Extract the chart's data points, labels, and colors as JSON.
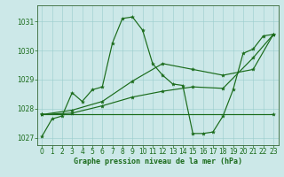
{
  "title": "Graphe pression niveau de la mer (hPa)",
  "bg_color": "#cce8e8",
  "grid_color": "#99cccc",
  "line_color": "#1a6b1a",
  "spine_color": "#336633",
  "xlim": [
    -0.5,
    23.5
  ],
  "ylim": [
    1026.75,
    1031.55
  ],
  "yticks": [
    1027,
    1028,
    1029,
    1030,
    1031
  ],
  "xticks": [
    0,
    1,
    2,
    3,
    4,
    5,
    6,
    7,
    8,
    9,
    10,
    11,
    12,
    13,
    14,
    15,
    16,
    17,
    18,
    19,
    20,
    21,
    22,
    23
  ],
  "series": [
    {
      "x": [
        0,
        1,
        2,
        3,
        4,
        5,
        6,
        7,
        8,
        9,
        10,
        11,
        12,
        13,
        14,
        15,
        16,
        17,
        18,
        19,
        20,
        21,
        22,
        23
      ],
      "y": [
        1027.05,
        1027.65,
        1027.75,
        1028.55,
        1028.25,
        1028.65,
        1028.75,
        1030.25,
        1031.1,
        1031.15,
        1030.7,
        1029.55,
        1029.15,
        1028.85,
        1028.8,
        1027.15,
        1027.15,
        1027.2,
        1027.75,
        1028.65,
        1029.9,
        1030.05,
        1030.5,
        1030.55
      ]
    },
    {
      "x": [
        0,
        23
      ],
      "y": [
        1027.8,
        1027.8
      ]
    },
    {
      "x": [
        0,
        3,
        6,
        9,
        12,
        15,
        18,
        21,
        23
      ],
      "y": [
        1027.8,
        1027.85,
        1028.1,
        1028.4,
        1028.6,
        1028.75,
        1028.7,
        1029.75,
        1030.55
      ]
    },
    {
      "x": [
        0,
        3,
        6,
        9,
        12,
        15,
        18,
        21,
        23
      ],
      "y": [
        1027.8,
        1027.95,
        1028.25,
        1028.95,
        1029.55,
        1029.35,
        1029.15,
        1029.35,
        1030.55
      ]
    }
  ],
  "figsize": [
    3.2,
    2.0
  ],
  "dpi": 100,
  "tick_fontsize": 5.5,
  "label_fontsize": 6.0,
  "linewidth": 0.85,
  "markersize": 3.0
}
